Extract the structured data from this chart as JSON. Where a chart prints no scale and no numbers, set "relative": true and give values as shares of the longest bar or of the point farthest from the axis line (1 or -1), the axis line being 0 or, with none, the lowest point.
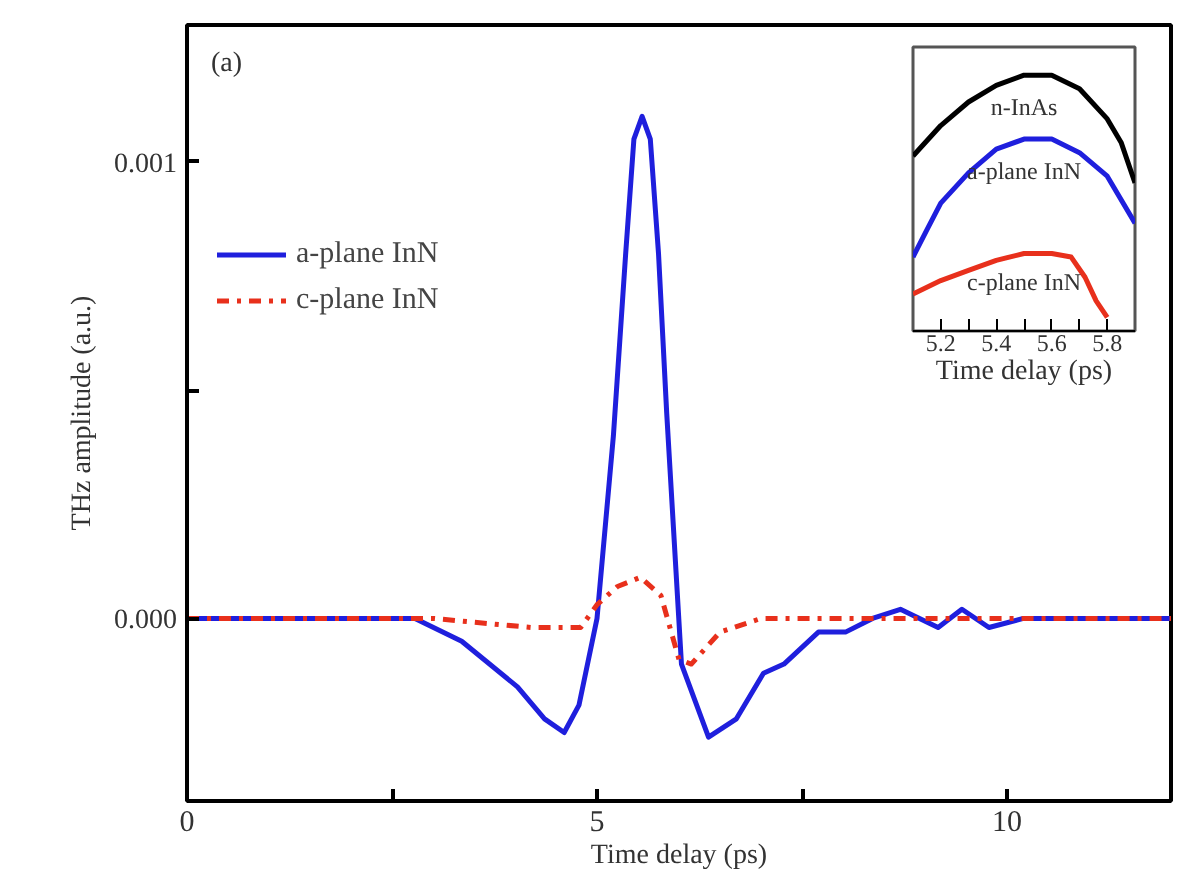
{
  "chart_data": [
    {
      "type": "line",
      "xlabel": "Time delay (ps)",
      "ylabel": "THz amplitude (a.u.)",
      "annotations": [
        "(a)"
      ],
      "xlim": [
        0,
        12
      ],
      "ylim": [
        -0.0004,
        0.0013
      ],
      "xticks": [
        0,
        {
          "value": 2.5,
          "label": null
        },
        5,
        {
          "value": 7.5,
          "label": null
        },
        10
      ],
      "yticks": [
        {
          "value": 0,
          "label": "0.000"
        },
        {
          "value": 0.0005,
          "label": null
        },
        0.001
      ],
      "grid": false,
      "legend": "top left",
      "marker": "none",
      "series": [
        {
          "name": "a-plane InN",
          "color": "#1f1fdd",
          "line_style": "solid",
          "x": [
            0,
            1,
            2,
            2.78,
            3.35,
            4.03,
            4.36,
            4.6,
            4.78,
            5.0,
            5.2,
            5.35,
            5.45,
            5.55,
            5.65,
            5.75,
            5.85,
            6.03,
            6.36,
            6.7,
            7.03,
            7.28,
            7.7,
            8.03,
            8.36,
            8.7,
            9.16,
            9.45,
            9.78,
            10.2,
            11,
            12
          ],
          "values": [
            0,
            0,
            0,
            0,
            -5e-05,
            -0.00015,
            -0.00022,
            -0.00025,
            -0.00019,
            0,
            0.0004,
            0.0008,
            0.00105,
            0.0011,
            0.00105,
            0.0008,
            0.00045,
            -0.0001,
            -0.00026,
            -0.00022,
            -0.00012,
            -0.0001,
            -3e-05,
            -3e-05,
            0,
            2e-05,
            -2e-05,
            2e-05,
            -2e-05,
            0,
            0,
            0
          ]
        },
        {
          "name": "c-plane InN",
          "color": "#e8301c",
          "line_style": "dashdot",
          "x": [
            0,
            1,
            2,
            3,
            4.2,
            4.8,
            5.0,
            5.25,
            5.53,
            5.78,
            6.0,
            6.15,
            6.5,
            7.0,
            8,
            9,
            10,
            11,
            12
          ],
          "values": [
            0,
            0,
            0,
            0,
            -2e-05,
            -2e-05,
            3e-05,
            7e-05,
            9e-05,
            5e-05,
            -9e-05,
            -0.0001,
            -3e-05,
            0,
            0,
            0,
            0,
            0,
            0
          ]
        }
      ]
    },
    {
      "type": "line",
      "xlabel": "Time delay (ps)",
      "relative": true,
      "xlim": [
        5.1,
        5.9
      ],
      "xticks": [
        5.2,
        {
          "value": 5.3,
          "label": null
        },
        5.4,
        {
          "value": 5.5,
          "label": null
        },
        5.6,
        {
          "value": 5.7,
          "label": null
        },
        5.8
      ],
      "grid": false,
      "marker": "none",
      "series": [
        {
          "name": "n-InAs",
          "color": "#000000",
          "x": [
            5.1,
            5.2,
            5.3,
            5.4,
            5.5,
            5.6,
            5.7,
            5.8,
            5.85,
            5.9
          ],
          "values": [
            0.684,
            0.803,
            0.895,
            0.96,
            1.0,
            1.0,
            0.947,
            0.829,
            0.737,
            0.579
          ]
        },
        {
          "name": "a-plane InN",
          "color": "#1f1fdd",
          "x": [
            5.1,
            5.15,
            5.2,
            5.3,
            5.4,
            5.5,
            5.6,
            5.7,
            5.8,
            5.9
          ],
          "values": [
            0.289,
            0.395,
            0.5,
            0.618,
            0.711,
            0.75,
            0.75,
            0.697,
            0.605,
            0.421
          ]
        },
        {
          "name": "c-plane InN",
          "color": "#e8301c",
          "x": [
            5.1,
            5.2,
            5.3,
            5.4,
            5.5,
            5.6,
            5.67,
            5.72,
            5.76,
            5.8
          ],
          "values": [
            0.145,
            0.197,
            0.237,
            0.276,
            0.303,
            0.303,
            0.289,
            0.21,
            0.118,
            0.053
          ]
        }
      ]
    }
  ]
}
